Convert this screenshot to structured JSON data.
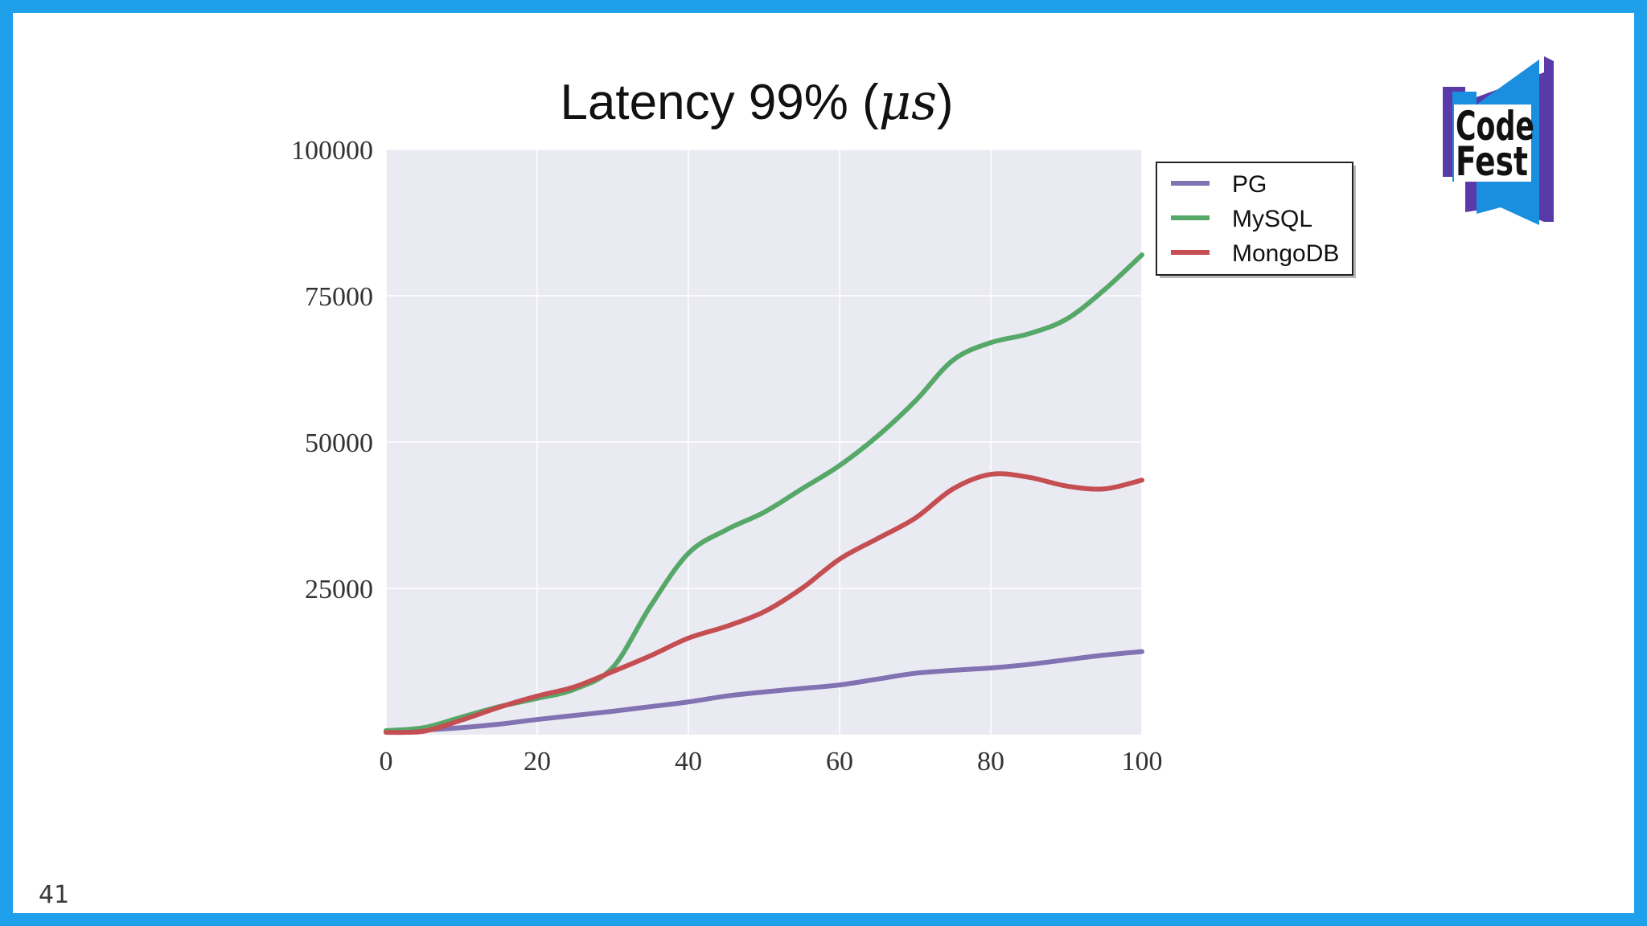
{
  "slide": {
    "number": "41"
  },
  "logo": {
    "line1": "Code",
    "line2": "Fest"
  },
  "colors": {
    "frame": "#1fa0ea",
    "plot_bg": "#eaeaf2",
    "grid": "#ffffff",
    "pg": "#8172b2",
    "mysql": "#55a868",
    "mongodb": "#c44e52",
    "logo_blue": "#1a8fe0",
    "logo_purple": "#5a3aa8"
  },
  "chart_data": {
    "type": "line",
    "title_text": "Latency 99% (",
    "title_symbol": "μs",
    "title_close": ")",
    "xlim": [
      0,
      100
    ],
    "ylim": [
      0,
      100000
    ],
    "xticks": [
      "0",
      "20",
      "40",
      "60",
      "80",
      "100"
    ],
    "yticks": [
      "100000",
      "75000",
      "50000",
      "25000"
    ],
    "grid": true,
    "legend_position": "top-right, outside plot",
    "x": [
      0,
      5,
      10,
      15,
      20,
      25,
      30,
      35,
      40,
      45,
      50,
      55,
      60,
      65,
      70,
      75,
      80,
      85,
      90,
      95,
      100
    ],
    "series": [
      {
        "name": "PG",
        "color": "#8172b2",
        "values": [
          500,
          800,
          1200,
          1800,
          2600,
          3300,
          4000,
          4800,
          5600,
          6600,
          7300,
          7900,
          8500,
          9500,
          10500,
          11000,
          11400,
          12000,
          12800,
          13600,
          14200
        ]
      },
      {
        "name": "MySQL",
        "color": "#55a868",
        "values": [
          700,
          1200,
          3000,
          4800,
          6200,
          7800,
          11500,
          22000,
          31000,
          35000,
          38000,
          42000,
          46000,
          51000,
          57000,
          64000,
          67000,
          68500,
          71000,
          76000,
          82000
        ]
      },
      {
        "name": "MongoDB",
        "color": "#c44e52",
        "values": [
          400,
          600,
          2500,
          4700,
          6600,
          8200,
          10800,
          13500,
          16500,
          18500,
          21000,
          25000,
          30000,
          33500,
          37000,
          42000,
          44500,
          44000,
          42500,
          42000,
          43500
        ]
      }
    ]
  }
}
